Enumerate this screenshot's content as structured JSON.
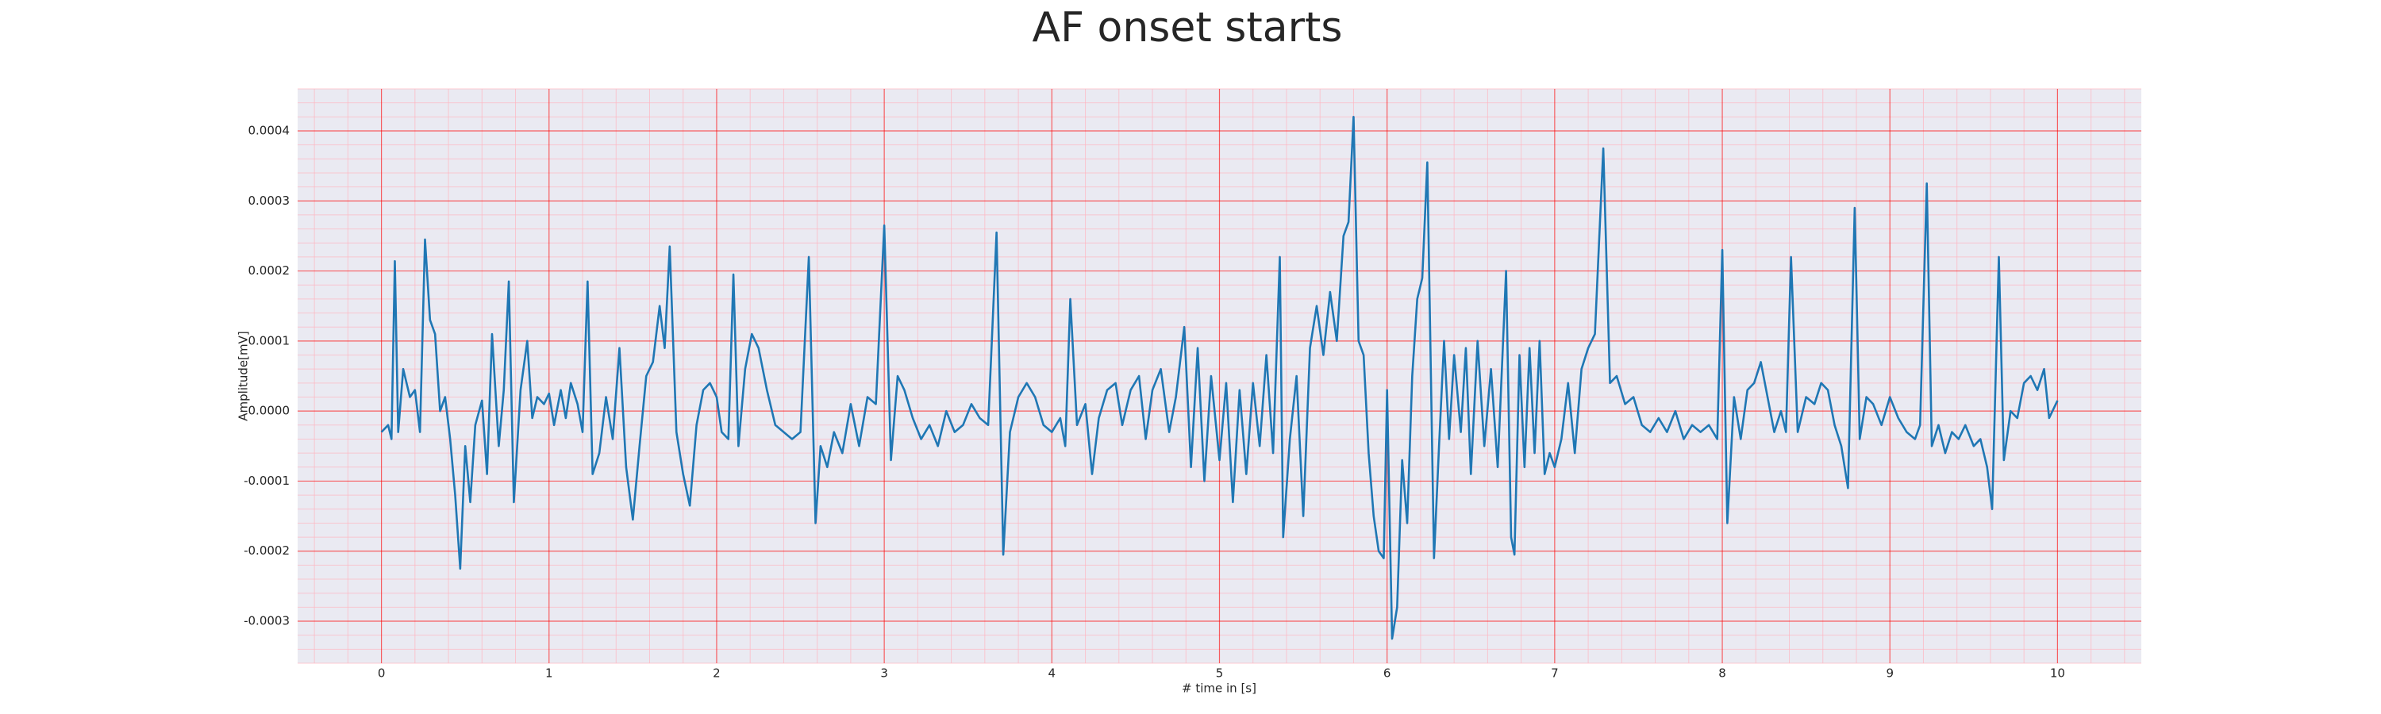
{
  "chart_data": {
    "type": "line",
    "title": "AF onset starts",
    "xlabel": "# time in [s]",
    "ylabel": "Amplitude[mV]",
    "xlim": [
      -0.5,
      10.5
    ],
    "ylim": [
      -0.00036,
      0.00046
    ],
    "xticks": [
      0,
      1,
      2,
      3,
      4,
      5,
      6,
      7,
      8,
      9,
      10
    ],
    "yticks": [
      -0.0003,
      -0.0002,
      -0.0001,
      {
        "value": 0,
        "label": "0.0000"
      },
      0.0001,
      0.0002,
      0.0003,
      0.0004
    ],
    "grid": true,
    "minor_grid": true,
    "minor_divisions": 5,
    "background": "#eaeaf2",
    "grid_color": "#ff0000",
    "minor_grid_color": "#ffb6c1",
    "series": [
      {
        "color": "#1f77b4",
        "x": [
          0,
          0.04,
          0.06,
          0.08,
          0.1,
          0.13,
          0.17,
          0.2,
          0.23,
          0.26,
          0.29,
          0.32,
          0.35,
          0.38,
          0.41,
          0.44,
          0.47,
          0.5,
          0.53,
          0.56,
          0.6,
          0.63,
          0.66,
          0.7,
          0.73,
          0.76,
          0.79,
          0.83,
          0.87,
          0.9,
          0.93,
          0.97,
          1.0,
          1.03,
          1.07,
          1.1,
          1.13,
          1.17,
          1.2,
          1.23,
          1.26,
          1.3,
          1.34,
          1.38,
          1.42,
          1.46,
          1.5,
          1.54,
          1.58,
          1.62,
          1.66,
          1.69,
          1.72,
          1.76,
          1.8,
          1.84,
          1.88,
          1.92,
          1.96,
          2.0,
          2.03,
          2.07,
          2.1,
          2.13,
          2.17,
          2.21,
          2.25,
          2.3,
          2.35,
          2.4,
          2.45,
          2.5,
          2.55,
          2.59,
          2.62,
          2.66,
          2.7,
          2.75,
          2.8,
          2.85,
          2.9,
          2.95,
          3.0,
          3.04,
          3.08,
          3.12,
          3.17,
          3.22,
          3.27,
          3.32,
          3.37,
          3.42,
          3.47,
          3.52,
          3.57,
          3.62,
          3.67,
          3.71,
          3.75,
          3.8,
          3.85,
          3.9,
          3.95,
          4.0,
          4.05,
          4.08,
          4.11,
          4.15,
          4.2,
          4.24,
          4.28,
          4.33,
          4.38,
          4.42,
          4.47,
          4.52,
          4.56,
          4.6,
          4.65,
          4.7,
          4.74,
          4.79,
          4.83,
          4.87,
          4.91,
          4.95,
          5.0,
          5.04,
          5.08,
          5.12,
          5.16,
          5.2,
          5.24,
          5.28,
          5.32,
          5.36,
          5.38,
          5.42,
          5.46,
          5.5,
          5.54,
          5.58,
          5.62,
          5.66,
          5.7,
          5.74,
          5.77,
          5.8,
          5.83,
          5.86,
          5.89,
          5.92,
          5.95,
          5.98,
          6.0,
          6.03,
          6.06,
          6.09,
          6.12,
          6.15,
          6.18,
          6.21,
          6.24,
          6.28,
          6.31,
          6.34,
          6.37,
          6.4,
          6.44,
          6.47,
          6.5,
          6.54,
          6.58,
          6.62,
          6.66,
          6.71,
          6.74,
          6.76,
          6.79,
          6.82,
          6.85,
          6.88,
          6.91,
          6.94,
          6.97,
          7.0,
          7.04,
          7.08,
          7.12,
          7.16,
          7.2,
          7.24,
          7.29,
          7.33,
          7.37,
          7.42,
          7.47,
          7.52,
          7.57,
          7.62,
          7.67,
          7.72,
          7.77,
          7.82,
          7.87,
          7.92,
          7.97,
          8.0,
          8.03,
          8.07,
          8.11,
          8.15,
          8.19,
          8.23,
          8.27,
          8.31,
          8.35,
          8.38,
          8.41,
          8.45,
          8.5,
          8.55,
          8.59,
          8.63,
          8.67,
          8.71,
          8.75,
          8.79,
          8.82,
          8.86,
          8.9,
          8.95,
          9.0,
          9.05,
          9.1,
          9.15,
          9.18,
          9.22,
          9.25,
          9.29,
          9.33,
          9.37,
          9.41,
          9.45,
          9.5,
          9.54,
          9.58,
          9.61,
          9.65,
          9.68,
          9.72,
          9.76,
          9.8,
          9.84,
          9.88,
          9.92,
          9.95,
          10.0
        ],
        "values": [
          -3e-05,
          -2e-05,
          -4e-05,
          0.000214,
          -3e-05,
          6e-05,
          2e-05,
          3e-05,
          -3e-05,
          0.000245,
          0.00013,
          0.00011,
          0,
          2e-05,
          -4e-05,
          -0.00012,
          -0.000225,
          -5e-05,
          -0.00013,
          -2e-05,
          1.5e-05,
          -9e-05,
          0.00011,
          -5e-05,
          3e-05,
          0.000185,
          -0.00013,
          3e-05,
          0.0001,
          -1e-05,
          2e-05,
          1e-05,
          2.5e-05,
          -2e-05,
          3e-05,
          -1e-05,
          4e-05,
          1e-05,
          -3e-05,
          0.000185,
          -9e-05,
          -6e-05,
          2e-05,
          -4e-05,
          9e-05,
          -8e-05,
          -0.000155,
          -5e-05,
          5e-05,
          7e-05,
          0.00015,
          9e-05,
          0.000235,
          -3e-05,
          -9e-05,
          -0.000135,
          -2e-05,
          3e-05,
          4e-05,
          2e-05,
          -3e-05,
          -4e-05,
          0.000195,
          -5e-05,
          6e-05,
          0.00011,
          9e-05,
          3e-05,
          -2e-05,
          -3e-05,
          -4e-05,
          -3e-05,
          0.00022,
          -0.00016,
          -5e-05,
          -8e-05,
          -3e-05,
          -6e-05,
          1e-05,
          -5e-05,
          2e-05,
          1e-05,
          0.000265,
          -7e-05,
          5e-05,
          3e-05,
          -1e-05,
          -4e-05,
          -2e-05,
          -5e-05,
          0,
          -3e-05,
          -2e-05,
          1e-05,
          -1e-05,
          -2e-05,
          0.000255,
          -0.000205,
          -3e-05,
          2e-05,
          4e-05,
          2e-05,
          -2e-05,
          -3e-05,
          -1e-05,
          -5e-05,
          0.00016,
          -2e-05,
          1e-05,
          -9e-05,
          -1e-05,
          3e-05,
          4e-05,
          -2e-05,
          3e-05,
          5e-05,
          -4e-05,
          3e-05,
          6e-05,
          -3e-05,
          2e-05,
          0.00012,
          -8e-05,
          9e-05,
          -0.0001,
          5e-05,
          -7e-05,
          4e-05,
          -0.00013,
          3e-05,
          -9e-05,
          4e-05,
          -5e-05,
          8e-05,
          -6e-05,
          0.00022,
          -0.00018,
          -4e-05,
          5e-05,
          -0.00015,
          9e-05,
          0.00015,
          8e-05,
          0.00017,
          0.0001,
          0.00025,
          0.00027,
          0.00042,
          0.0001,
          8e-05,
          -6e-05,
          -0.00015,
          -0.0002,
          -0.00021,
          3e-05,
          -0.000325,
          -0.00028,
          -7e-05,
          -0.00016,
          5e-05,
          0.00016,
          0.00019,
          0.000355,
          -0.00021,
          -5e-05,
          0.0001,
          -4e-05,
          8e-05,
          -3e-05,
          9e-05,
          -9e-05,
          0.0001,
          -5e-05,
          6e-05,
          -8e-05,
          0.0002,
          -0.00018,
          -0.000205,
          8e-05,
          -8e-05,
          9e-05,
          -6e-05,
          0.0001,
          -9e-05,
          -6e-05,
          -8e-05,
          -4e-05,
          4e-05,
          -6e-05,
          6e-05,
          9e-05,
          0.00011,
          0.000375,
          4e-05,
          5e-05,
          1e-05,
          2e-05,
          -2e-05,
          -3e-05,
          -1e-05,
          -3e-05,
          0,
          -4e-05,
          -2e-05,
          -3e-05,
          -2e-05,
          -4e-05,
          0.00023,
          -0.00016,
          2e-05,
          -4e-05,
          3e-05,
          4e-05,
          7e-05,
          2e-05,
          -3e-05,
          0,
          -3e-05,
          0.00022,
          -3e-05,
          2e-05,
          1e-05,
          4e-05,
          3e-05,
          -2e-05,
          -5e-05,
          -0.00011,
          0.00029,
          -4e-05,
          2e-05,
          1e-05,
          -2e-05,
          2e-05,
          -1e-05,
          -3e-05,
          -4e-05,
          -2e-05,
          0.000325,
          -5e-05,
          -2e-05,
          -6e-05,
          -3e-05,
          -4e-05,
          -2e-05,
          -5e-05,
          -4e-05,
          -8e-05,
          -0.00014,
          0.00022,
          -7e-05,
          0,
          -1e-05,
          4e-05,
          5e-05,
          3e-05,
          6e-05,
          -1e-05,
          1.5e-05
        ]
      }
    ]
  }
}
